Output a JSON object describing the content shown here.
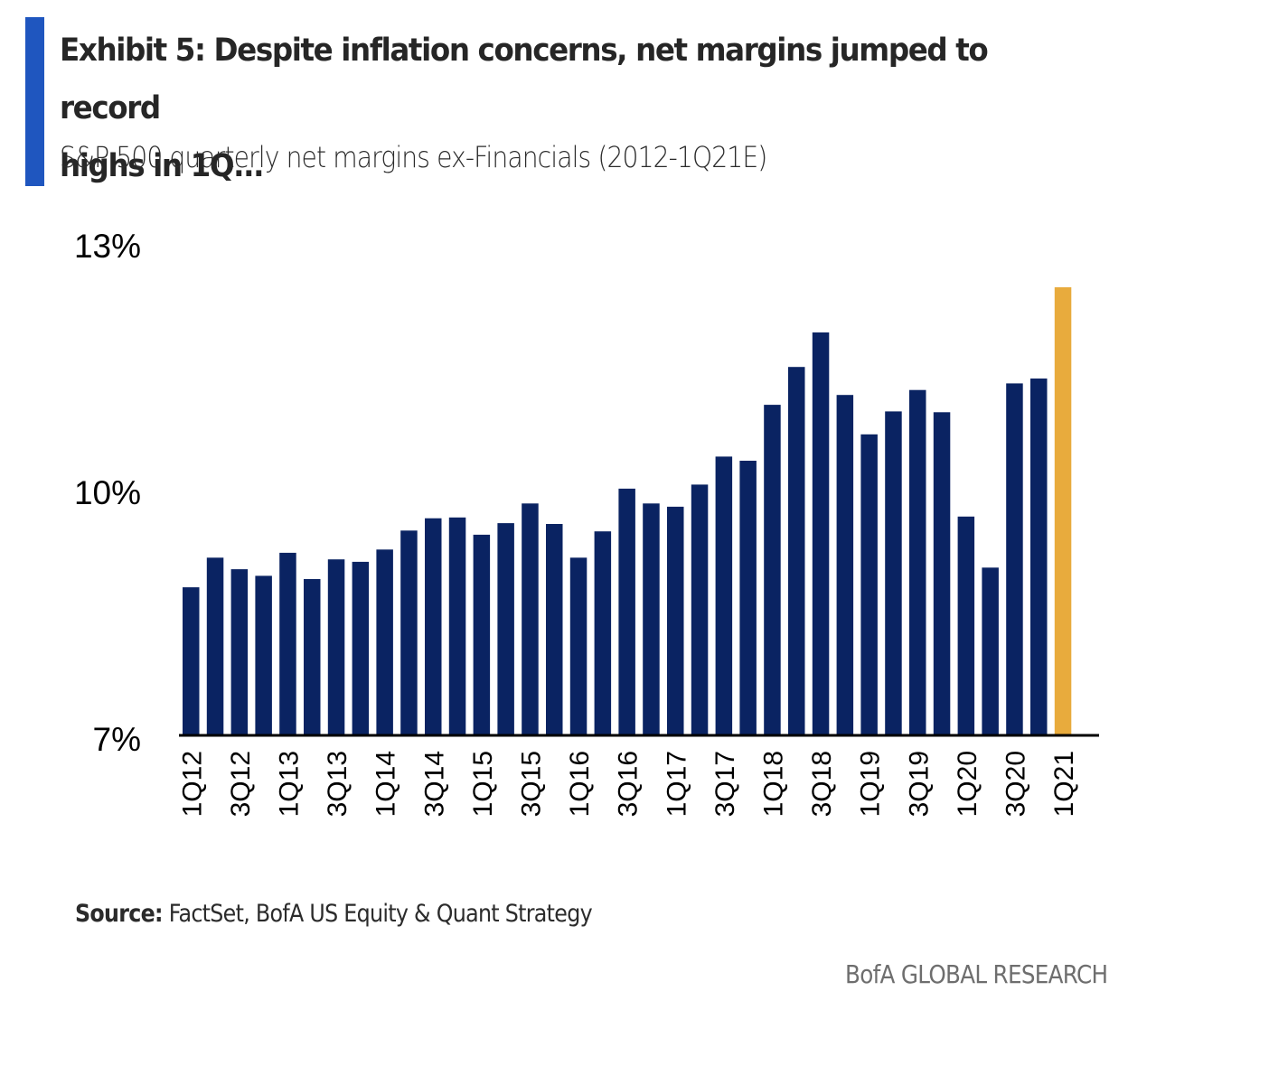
{
  "header": {
    "title": "Exhibit 5: Despite inflation concerns, net margins jumped to record highs in 1Q...",
    "title_line1": "Exhibit 5: Despite inflation concerns, net margins jumped to record",
    "title_line2": "highs in 1Q...",
    "subtitle": "S&P 500 quarterly net margins ex-Financials (2012-1Q21E)"
  },
  "footer": {
    "source_label": "Source:",
    "source_text": " FactSet, BofA US Equity & Quant Strategy",
    "brand": "BofA GLOBAL RESEARCH"
  },
  "colors": {
    "accent": "#1f56bf",
    "bar": "#0a2362",
    "highlight": "#e8ab3d",
    "axis": "#000000"
  },
  "chart_data": {
    "type": "bar",
    "title": "Exhibit 5: Despite inflation concerns, net margins jumped to record highs in 1Q...",
    "subtitle": "S&P 500 quarterly net margins ex-Financials (2012-1Q21E)",
    "xlabel": "",
    "ylabel": "",
    "ylim": [
      7,
      13
    ],
    "yticks": [
      7,
      10,
      13
    ],
    "ytick_labels": [
      "7%",
      "10%",
      "13%"
    ],
    "grid": false,
    "legend": "none",
    "categories": [
      "1Q12",
      "2Q12",
      "3Q12",
      "4Q12",
      "1Q13",
      "2Q13",
      "3Q13",
      "4Q13",
      "1Q14",
      "2Q14",
      "3Q14",
      "4Q14",
      "1Q15",
      "2Q15",
      "3Q15",
      "4Q15",
      "1Q16",
      "2Q16",
      "3Q16",
      "4Q16",
      "1Q17",
      "2Q17",
      "3Q17",
      "4Q17",
      "1Q18",
      "2Q18",
      "3Q18",
      "4Q18",
      "1Q19",
      "2Q19",
      "3Q19",
      "4Q19",
      "1Q20",
      "2Q20",
      "3Q20",
      "4Q20",
      "1Q21"
    ],
    "xtick_labels": [
      "1Q12",
      "3Q12",
      "1Q13",
      "3Q13",
      "1Q14",
      "3Q14",
      "1Q15",
      "3Q15",
      "1Q16",
      "3Q16",
      "1Q17",
      "3Q17",
      "1Q18",
      "3Q18",
      "1Q19",
      "3Q19",
      "1Q20",
      "3Q20",
      "1Q21"
    ],
    "values": [
      8.79,
      9.15,
      9.01,
      8.93,
      9.21,
      8.89,
      9.13,
      9.1,
      9.25,
      9.48,
      9.63,
      9.64,
      9.43,
      9.57,
      9.81,
      9.56,
      9.15,
      9.47,
      9.99,
      9.81,
      9.77,
      10.04,
      10.38,
      10.33,
      11.01,
      11.47,
      11.89,
      11.13,
      10.65,
      10.93,
      11.19,
      10.92,
      9.65,
      9.03,
      11.27,
      11.33,
      12.44
    ],
    "highlighted_category": "1Q21",
    "unit": "%"
  }
}
